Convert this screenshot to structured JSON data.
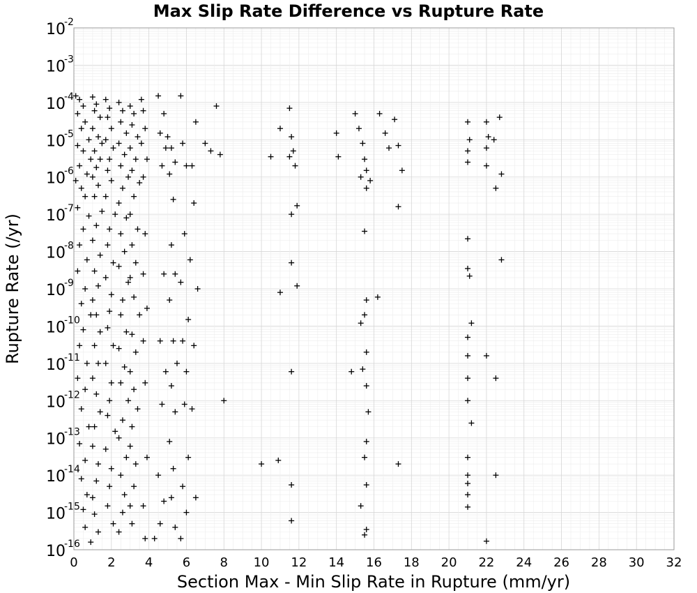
{
  "chart_data": {
    "type": "scatter",
    "title": "Max Slip Rate Difference vs Rupture Rate",
    "xlabel": "Section Max - Min Slip Rate in Rupture (mm/yr)",
    "ylabel": "Rupture Rate (/yr)",
    "xlim": [
      0,
      32
    ],
    "ylim": [
      1e-16,
      0.01
    ],
    "yscale": "log",
    "grid": true,
    "marker": "plus",
    "x_ticks": [
      "0",
      "2",
      "4",
      "6",
      "8",
      "10",
      "12",
      "14",
      "16",
      "18",
      "20",
      "22",
      "24",
      "26",
      "28",
      "30",
      "32"
    ],
    "y_ticks": [
      {
        "base": "10",
        "exp": "-16"
      },
      {
        "base": "10",
        "exp": "-15"
      },
      {
        "base": "10",
        "exp": "-14"
      },
      {
        "base": "10",
        "exp": "-13"
      },
      {
        "base": "10",
        "exp": "-12"
      },
      {
        "base": "10",
        "exp": "-11"
      },
      {
        "base": "10",
        "exp": "-10"
      },
      {
        "base": "10",
        "exp": "-9"
      },
      {
        "base": "10",
        "exp": "-8"
      },
      {
        "base": "10",
        "exp": "-7"
      },
      {
        "base": "10",
        "exp": "-6"
      },
      {
        "base": "10",
        "exp": "-5"
      },
      {
        "base": "10",
        "exp": "-4"
      },
      {
        "base": "10",
        "exp": "-3"
      },
      {
        "base": "10",
        "exp": "-2"
      }
    ],
    "points": [
      [
        0.1,
        0.00015
      ],
      [
        0.3,
        0.00012
      ],
      [
        0.5,
        8e-05
      ],
      [
        0.2,
        5e-05
      ],
      [
        0.6,
        3e-05
      ],
      [
        0.4,
        2e-05
      ],
      [
        0.8,
        1e-05
      ],
      [
        0.2,
        7e-06
      ],
      [
        0.5,
        5e-06
      ],
      [
        0.9,
        3e-06
      ],
      [
        0.3,
        2e-06
      ],
      [
        0.7,
        1.2e-06
      ],
      [
        0.1,
        8e-07
      ],
      [
        0.4,
        5e-07
      ],
      [
        0.6,
        3e-07
      ],
      [
        0.2,
        1.5e-07
      ],
      [
        0.8,
        9e-08
      ],
      [
        0.5,
        4e-08
      ],
      [
        0.3,
        1.5e-08
      ],
      [
        0.7,
        6e-09
      ],
      [
        0.2,
        3e-09
      ],
      [
        0.6,
        1e-09
      ],
      [
        0.4,
        4e-10
      ],
      [
        0.9,
        2e-10
      ],
      [
        0.5,
        8e-11
      ],
      [
        0.3,
        3e-11
      ],
      [
        0.7,
        1e-11
      ],
      [
        0.2,
        4e-12
      ],
      [
        0.6,
        2e-12
      ],
      [
        0.4,
        6e-13
      ],
      [
        0.8,
        2e-13
      ],
      [
        0.3,
        7e-14
      ],
      [
        0.6,
        2.5e-14
      ],
      [
        0.4,
        8e-15
      ],
      [
        0.7,
        3e-15
      ],
      [
        0.5,
        1.2e-15
      ],
      [
        0.6,
        4e-16
      ],
      [
        0.9,
        1.6e-16
      ],
      [
        1.0,
        0.00014
      ],
      [
        1.2,
        9e-05
      ],
      [
        1.1,
        6e-05
      ],
      [
        1.4,
        4e-05
      ],
      [
        1.0,
        2e-05
      ],
      [
        1.3,
        1.2e-05
      ],
      [
        1.5,
        8e-06
      ],
      [
        1.1,
        5e-06
      ],
      [
        1.4,
        3e-06
      ],
      [
        1.2,
        1.8e-06
      ],
      [
        1.0,
        1e-06
      ],
      [
        1.3,
        6e-07
      ],
      [
        1.1,
        3e-07
      ],
      [
        1.5,
        1.2e-07
      ],
      [
        1.2,
        5e-08
      ],
      [
        1.0,
        2e-08
      ],
      [
        1.4,
        8e-09
      ],
      [
        1.1,
        3e-09
      ],
      [
        1.3,
        1.2e-09
      ],
      [
        1.0,
        5e-10
      ],
      [
        1.2,
        2e-10
      ],
      [
        1.4,
        7e-11
      ],
      [
        1.1,
        3e-11
      ],
      [
        1.3,
        1e-11
      ],
      [
        1.0,
        4e-12
      ],
      [
        1.2,
        1.5e-12
      ],
      [
        1.4,
        5e-13
      ],
      [
        1.1,
        2e-13
      ],
      [
        1.0,
        6e-14
      ],
      [
        1.3,
        2e-14
      ],
      [
        1.2,
        7e-15
      ],
      [
        1.0,
        2.5e-15
      ],
      [
        1.1,
        9e-16
      ],
      [
        1.3,
        3e-16
      ],
      [
        1.7,
        0.00012
      ],
      [
        1.9,
        7e-05
      ],
      [
        1.8,
        4e-05
      ],
      [
        2.0,
        2e-05
      ],
      [
        1.7,
        1e-05
      ],
      [
        2.1,
        6e-06
      ],
      [
        1.9,
        3e-06
      ],
      [
        1.8,
        1.5e-06
      ],
      [
        2.0,
        8e-07
      ],
      [
        1.7,
        3e-07
      ],
      [
        2.2,
        1e-07
      ],
      [
        1.9,
        4e-08
      ],
      [
        1.8,
        1.5e-08
      ],
      [
        2.1,
        5e-09
      ],
      [
        1.7,
        2e-09
      ],
      [
        2.0,
        7e-10
      ],
      [
        1.9,
        2.5e-10
      ],
      [
        1.8,
        9e-11
      ],
      [
        2.1,
        3e-11
      ],
      [
        1.7,
        1e-11
      ],
      [
        2.0,
        3e-12
      ],
      [
        1.9,
        1e-12
      ],
      [
        1.8,
        4e-13
      ],
      [
        2.2,
        1.5e-13
      ],
      [
        1.7,
        5e-14
      ],
      [
        2.0,
        1.5e-14
      ],
      [
        1.9,
        5e-15
      ],
      [
        1.8,
        1.5e-15
      ],
      [
        2.1,
        5e-16
      ],
      [
        2.4,
        0.0001
      ],
      [
        2.6,
        6e-05
      ],
      [
        2.5,
        3e-05
      ],
      [
        2.8,
        1.5e-05
      ],
      [
        2.4,
        8e-06
      ],
      [
        2.7,
        4e-06
      ],
      [
        2.5,
        2e-06
      ],
      [
        2.9,
        1e-06
      ],
      [
        2.6,
        5e-07
      ],
      [
        2.4,
        2e-07
      ],
      [
        2.8,
        8e-08
      ],
      [
        2.5,
        3e-08
      ],
      [
        2.7,
        1e-08
      ],
      [
        2.4,
        4e-09
      ],
      [
        2.9,
        1.5e-09
      ],
      [
        2.6,
        5e-10
      ],
      [
        2.5,
        2e-10
      ],
      [
        2.8,
        7e-11
      ],
      [
        2.4,
        2.5e-11
      ],
      [
        2.7,
        8e-12
      ],
      [
        2.5,
        3e-12
      ],
      [
        2.9,
        1e-12
      ],
      [
        2.6,
        3e-13
      ],
      [
        2.4,
        1e-13
      ],
      [
        2.8,
        3e-14
      ],
      [
        2.5,
        1e-14
      ],
      [
        2.7,
        3e-15
      ],
      [
        2.6,
        1e-15
      ],
      [
        2.4,
        3e-16
      ],
      [
        3.0,
        8e-05
      ],
      [
        3.2,
        5e-05
      ],
      [
        3.1,
        2.5e-05
      ],
      [
        3.4,
        1.2e-05
      ],
      [
        3.0,
        6e-06
      ],
      [
        3.3,
        3e-06
      ],
      [
        3.1,
        1.5e-06
      ],
      [
        3.5,
        7e-07
      ],
      [
        3.2,
        3e-07
      ],
      [
        3.0,
        1e-07
      ],
      [
        3.4,
        4e-08
      ],
      [
        3.1,
        1.5e-08
      ],
      [
        3.3,
        5e-09
      ],
      [
        3.0,
        2e-09
      ],
      [
        3.2,
        6e-10
      ],
      [
        3.5,
        2e-10
      ],
      [
        3.1,
        6e-11
      ],
      [
        3.3,
        2e-11
      ],
      [
        3.0,
        6e-12
      ],
      [
        3.2,
        2e-12
      ],
      [
        3.4,
        6e-13
      ],
      [
        3.1,
        2e-13
      ],
      [
        3.0,
        6e-14
      ],
      [
        3.3,
        2e-14
      ],
      [
        3.2,
        5e-15
      ],
      [
        3.0,
        1.5e-15
      ],
      [
        3.1,
        5e-16
      ],
      [
        3.6,
        0.00012
      ],
      [
        3.7,
        6e-05
      ],
      [
        3.8,
        2e-05
      ],
      [
        3.6,
        8e-06
      ],
      [
        3.9,
        3e-06
      ],
      [
        3.7,
        1e-06
      ],
      [
        3.8,
        3e-08
      ],
      [
        3.7,
        2.5e-09
      ],
      [
        3.9,
        3e-10
      ],
      [
        3.7,
        4e-11
      ],
      [
        3.8,
        3e-12
      ],
      [
        3.9,
        3e-14
      ],
      [
        3.7,
        1.5e-15
      ],
      [
        3.8,
        2e-16
      ],
      [
        4.5,
        0.00015
      ],
      [
        4.8,
        5e-05
      ],
      [
        4.6,
        1.5e-05
      ],
      [
        4.9,
        6e-06
      ],
      [
        4.7,
        2e-06
      ],
      [
        4.8,
        2.5e-09
      ],
      [
        4.6,
        4e-11
      ],
      [
        4.9,
        6e-12
      ],
      [
        4.7,
        8e-13
      ],
      [
        4.5,
        1e-14
      ],
      [
        4.8,
        2e-15
      ],
      [
        4.6,
        5e-16
      ],
      [
        4.3,
        2e-16
      ],
      [
        5.0,
        1.2e-05
      ],
      [
        5.2,
        6e-06
      ],
      [
        5.4,
        2.5e-06
      ],
      [
        5.1,
        1.2e-06
      ],
      [
        5.3,
        2.5e-07
      ],
      [
        5.2,
        1.5e-08
      ],
      [
        5.4,
        2.5e-09
      ],
      [
        5.1,
        5e-10
      ],
      [
        5.3,
        4e-11
      ],
      [
        5.5,
        1e-11
      ],
      [
        5.2,
        2.5e-12
      ],
      [
        5.4,
        5e-13
      ],
      [
        5.1,
        8e-14
      ],
      [
        5.3,
        1.5e-14
      ],
      [
        5.2,
        2.5e-15
      ],
      [
        5.4,
        4e-16
      ],
      [
        5.7,
        0.00015
      ],
      [
        5.8,
        8e-06
      ],
      [
        6.0,
        2e-06
      ],
      [
        5.9,
        3e-08
      ],
      [
        5.7,
        1.5e-09
      ],
      [
        6.1,
        1.5e-10
      ],
      [
        5.8,
        4e-11
      ],
      [
        6.0,
        6e-12
      ],
      [
        5.9,
        8e-13
      ],
      [
        6.1,
        3e-14
      ],
      [
        5.8,
        5e-15
      ],
      [
        6.0,
        1e-15
      ],
      [
        5.7,
        2e-16
      ],
      [
        6.5,
        3e-05
      ],
      [
        6.3,
        2e-06
      ],
      [
        6.4,
        2e-07
      ],
      [
        6.2,
        6e-09
      ],
      [
        6.6,
        1e-09
      ],
      [
        6.4,
        3e-11
      ],
      [
        6.3,
        6e-13
      ],
      [
        6.5,
        2.5e-15
      ],
      [
        7.0,
        8e-06
      ],
      [
        7.3,
        5e-06
      ],
      [
        7.6,
        8e-05
      ],
      [
        7.8,
        4e-06
      ],
      [
        8.0,
        1e-12
      ],
      [
        10.0,
        2e-14
      ],
      [
        10.5,
        3.5e-06
      ],
      [
        11.0,
        2e-05
      ],
      [
        11.0,
        8e-10
      ],
      [
        10.9,
        2.5e-14
      ],
      [
        11.5,
        7e-05
      ],
      [
        11.6,
        1.2e-05
      ],
      [
        11.7,
        5e-06
      ],
      [
        11.5,
        3.5e-06
      ],
      [
        11.8,
        2e-06
      ],
      [
        11.6,
        1e-07
      ],
      [
        11.9,
        1.7e-07
      ],
      [
        11.6,
        5e-09
      ],
      [
        11.9,
        1.2e-09
      ],
      [
        11.6,
        6e-12
      ],
      [
        11.6,
        5.5e-15
      ],
      [
        11.6,
        6e-16
      ],
      [
        14.0,
        1.5e-05
      ],
      [
        14.1,
        3.5e-06
      ],
      [
        15.0,
        5e-05
      ],
      [
        15.2,
        2e-05
      ],
      [
        15.4,
        8e-06
      ],
      [
        15.5,
        3e-06
      ],
      [
        15.6,
        1.5e-06
      ],
      [
        15.3,
        1e-06
      ],
      [
        15.6,
        5e-07
      ],
      [
        15.8,
        8e-07
      ],
      [
        15.5,
        3.5e-08
      ],
      [
        15.6,
        5e-10
      ],
      [
        15.5,
        2e-10
      ],
      [
        15.3,
        1.2e-10
      ],
      [
        15.6,
        2e-11
      ],
      [
        15.4,
        7e-12
      ],
      [
        15.6,
        2.5e-12
      ],
      [
        15.7,
        5e-13
      ],
      [
        15.6,
        8e-14
      ],
      [
        15.5,
        3e-14
      ],
      [
        15.6,
        5.5e-15
      ],
      [
        15.3,
        1.5e-15
      ],
      [
        15.6,
        3.5e-16
      ],
      [
        15.5,
        2.5e-16
      ],
      [
        14.8,
        6e-12
      ],
      [
        16.3,
        5e-05
      ],
      [
        16.6,
        1.5e-05
      ],
      [
        16.8,
        6e-06
      ],
      [
        17.1,
        3.5e-05
      ],
      [
        17.3,
        7e-06
      ],
      [
        17.5,
        1.5e-06
      ],
      [
        17.3,
        1.6e-07
      ],
      [
        16.2,
        6e-10
      ],
      [
        17.3,
        2e-14
      ],
      [
        21.0,
        3e-05
      ],
      [
        21.1,
        1e-05
      ],
      [
        21.0,
        5e-06
      ],
      [
        21.0,
        2.5e-06
      ],
      [
        21.0,
        2.2e-08
      ],
      [
        21.0,
        3.5e-09
      ],
      [
        21.1,
        2.2e-09
      ],
      [
        21.2,
        1.2e-10
      ],
      [
        21.0,
        5e-11
      ],
      [
        21.0,
        1.6e-11
      ],
      [
        21.0,
        4e-12
      ],
      [
        21.0,
        1e-12
      ],
      [
        21.2,
        2.5e-13
      ],
      [
        21.0,
        3e-14
      ],
      [
        21.0,
        1e-14
      ],
      [
        21.0,
        6e-15
      ],
      [
        21.0,
        3e-15
      ],
      [
        21.0,
        1.4e-15
      ],
      [
        22.0,
        3e-05
      ],
      [
        22.1,
        1.2e-05
      ],
      [
        22.0,
        6e-06
      ],
      [
        22.0,
        2e-06
      ],
      [
        22.4,
        1e-05
      ],
      [
        22.5,
        5e-07
      ],
      [
        22.7,
        4e-05
      ],
      [
        22.8,
        1.2e-06
      ],
      [
        22.8,
        6e-09
      ],
      [
        22.5,
        4e-12
      ],
      [
        22.0,
        1.6e-11
      ],
      [
        22.5,
        1e-14
      ],
      [
        22.0,
        1.7e-16
      ]
    ]
  }
}
